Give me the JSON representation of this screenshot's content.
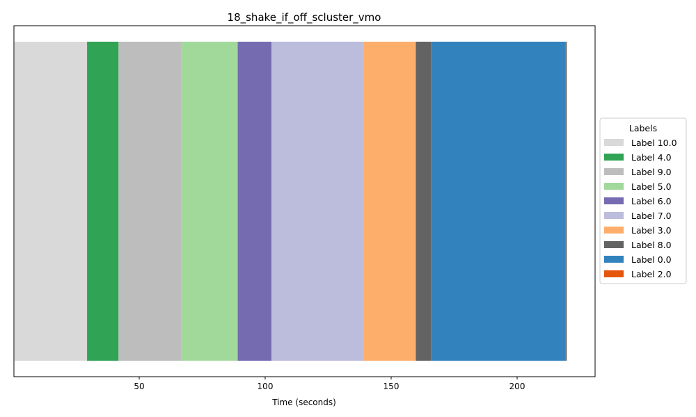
{
  "chart_data": {
    "type": "bar",
    "orientation": "horizontal-timeline",
    "title": "18_shake_if_off_scluster_vmo",
    "xlabel": "Time (seconds)",
    "ylabel": "",
    "xlim": [
      0,
      230
    ],
    "xticks": [
      50,
      100,
      150,
      200
    ],
    "legend": {
      "title": "Labels",
      "placement": "right",
      "entries": [
        {
          "label": "Label 10.0",
          "color": "#d9d9d9"
        },
        {
          "label": "Label 4.0",
          "color": "#31a354"
        },
        {
          "label": "Label 9.0",
          "color": "#bdbdbd"
        },
        {
          "label": "Label 5.0",
          "color": "#a1d99b"
        },
        {
          "label": "Label 6.0",
          "color": "#756bb1"
        },
        {
          "label": "Label 7.0",
          "color": "#bcbddc"
        },
        {
          "label": "Label 3.0",
          "color": "#fdae6b"
        },
        {
          "label": "Label 8.0",
          "color": "#636363"
        },
        {
          "label": "Label 0.0",
          "color": "#3182bd"
        },
        {
          "label": "Label 2.0",
          "color": "#e6550d"
        }
      ]
    },
    "segments": [
      {
        "label": "Label 10.0",
        "start": 0.5,
        "end": 29.3,
        "color": "#d9d9d9"
      },
      {
        "label": "Label 4.0",
        "start": 29.3,
        "end": 41.8,
        "color": "#31a354"
      },
      {
        "label": "Label 9.0",
        "start": 41.8,
        "end": 66.7,
        "color": "#bdbdbd"
      },
      {
        "label": "Label 5.0",
        "start": 66.7,
        "end": 89.1,
        "color": "#a1d99b"
      },
      {
        "label": "Label 6.0",
        "start": 89.1,
        "end": 102.5,
        "color": "#756bb1"
      },
      {
        "label": "Label 7.0",
        "start": 102.5,
        "end": 139.2,
        "color": "#bcbddc"
      },
      {
        "label": "Label 3.0",
        "start": 139.2,
        "end": 159.8,
        "color": "#fdae6b"
      },
      {
        "label": "Label 8.0",
        "start": 159.8,
        "end": 165.8,
        "color": "#636363"
      },
      {
        "label": "Label 0.0",
        "start": 165.8,
        "end": 219.3,
        "color": "#3182bd"
      },
      {
        "label": "Label 8.0",
        "start": 219.3,
        "end": 219.7,
        "color": "#636363"
      }
    ]
  }
}
